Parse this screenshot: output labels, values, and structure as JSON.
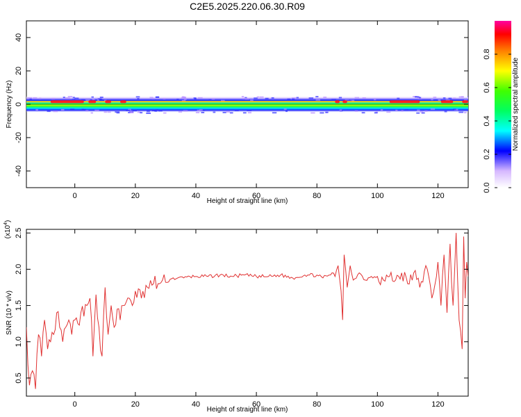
{
  "title": "C2E5.2025.220.06.30.R09",
  "colors": {
    "signal": "#e03030",
    "frame": "#000000",
    "background": "#ffffff"
  },
  "chart_data": [
    {
      "type": "heatmap",
      "xlabel": "Height of straight line (km)",
      "ylabel": "Frequency (Hz)",
      "xlim": [
        -16,
        130
      ],
      "ylim": [
        -50,
        50
      ],
      "x_ticks": [
        0,
        20,
        40,
        60,
        80,
        100,
        120
      ],
      "y_ticks": [
        -40,
        -20,
        0,
        20,
        40
      ],
      "band_frequency_range_hz": [
        -5,
        5
      ],
      "peak_frequency_hz": 1.5,
      "hot_segments_km": [
        [
          -8,
          3
        ],
        [
          4.5,
          7
        ],
        [
          10,
          12
        ],
        [
          15,
          17
        ],
        [
          86,
          87.5
        ],
        [
          88.5,
          90
        ],
        [
          104,
          114
        ],
        [
          121,
          125
        ],
        [
          128,
          130
        ]
      ],
      "colorbar": {
        "label": "Normalized spectral amplitude",
        "range": [
          0.0,
          1.0
        ],
        "ticks": [
          "0.0",
          "0.2",
          "0.4",
          "0.6",
          "0.8"
        ]
      }
    },
    {
      "type": "line",
      "xlabel": "Height of straight line (km)",
      "ylabel": "SNR (10 * v/v)",
      "scale_label": "(x10^4)",
      "xlim": [
        -16,
        130
      ],
      "ylim": [
        0.25,
        2.55
      ],
      "x_ticks": [
        0,
        20,
        40,
        60,
        80,
        100,
        120
      ],
      "y_ticks": [
        "0.5",
        "1.0",
        "1.5",
        "2.0",
        "2.5"
      ],
      "series": [
        {
          "x": [
            -16,
            -15,
            -14,
            -13,
            -12,
            -11,
            -10,
            -9,
            -8,
            -7,
            -6,
            -5,
            -4,
            -3,
            -2,
            -1,
            0,
            1,
            2,
            3,
            4,
            5,
            6,
            7,
            8,
            9,
            10,
            11,
            12,
            13,
            14,
            15,
            16,
            17,
            18,
            19,
            20,
            22,
            24,
            26,
            28,
            30,
            32,
            34,
            36,
            38,
            40,
            44,
            48,
            52,
            56,
            60,
            64,
            68,
            72,
            76,
            80,
            82,
            84,
            85,
            86,
            87,
            88,
            88.5,
            89,
            90,
            91,
            92,
            94,
            96,
            98,
            100,
            102,
            104,
            106,
            108,
            110,
            112,
            114,
            116,
            118,
            120,
            121,
            122,
            123,
            124,
            125,
            126,
            127,
            128,
            128.5,
            129,
            129.5,
            130
          ],
          "y": [
            1.2,
            0.4,
            0.6,
            0.35,
            1.1,
            0.8,
            1.3,
            0.9,
            1.0,
            1.1,
            1.4,
            1.2,
            1.0,
            1.2,
            1.3,
            1.1,
            1.3,
            1.25,
            1.4,
            1.35,
            1.5,
            1.6,
            0.8,
            1.65,
            1.2,
            0.8,
            1.75,
            1.1,
            1.5,
            1.2,
            1.45,
            1.3,
            1.5,
            1.55,
            1.6,
            1.5,
            1.7,
            1.6,
            1.75,
            1.8,
            1.8,
            1.82,
            1.87,
            1.88,
            1.88,
            1.9,
            1.9,
            1.9,
            1.92,
            1.9,
            1.92,
            1.9,
            1.9,
            1.92,
            1.88,
            1.92,
            1.92,
            1.88,
            1.92,
            1.95,
            1.9,
            2.05,
            1.7,
            1.3,
            2.2,
            1.75,
            2.05,
            1.85,
            1.95,
            1.85,
            1.9,
            1.9,
            1.85,
            1.9,
            1.85,
            1.95,
            1.8,
            1.95,
            1.75,
            2.05,
            1.6,
            2.1,
            1.5,
            2.2,
            1.4,
            2.35,
            1.5,
            2.5,
            1.3,
            0.9,
            2.45,
            1.6,
            2.1,
            1.9
          ]
        }
      ]
    }
  ]
}
